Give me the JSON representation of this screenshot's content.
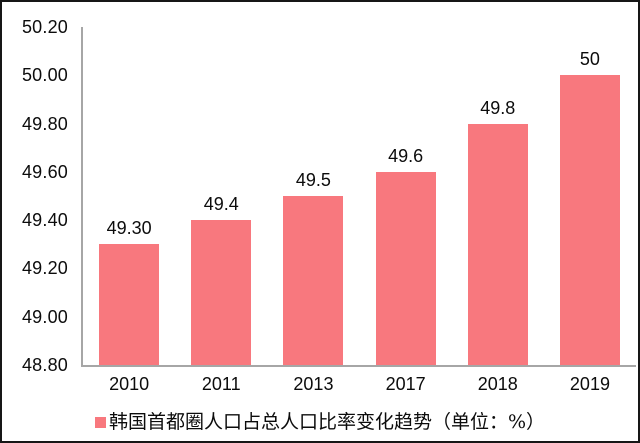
{
  "chart_data": {
    "type": "bar",
    "categories": [
      "2010",
      "2011",
      "2013",
      "2017",
      "2018",
      "2019"
    ],
    "values": [
      49.3,
      49.4,
      49.5,
      49.6,
      49.8,
      50.0
    ],
    "bar_labels": [
      "49.30",
      "49.4",
      "49.5",
      "49.6",
      "49.8",
      "50"
    ],
    "title": "",
    "xlabel": "",
    "ylabel": "",
    "ylim": [
      48.8,
      50.2
    ],
    "y_tick_step": 0.2,
    "y_tick_labels": [
      "50.20",
      "50.00",
      "49.80",
      "49.60",
      "49.40",
      "49.20",
      "49.00",
      "48.80"
    ],
    "grid": false,
    "legend": {
      "position": "bottom",
      "label": "韩国首都圈人口占总人口比率变化趋势（单位：%）"
    },
    "colors": {
      "bar": "#f8787e",
      "axis_line": "#a6a6a6",
      "text": "#0c0c0c",
      "background": "#ffffff",
      "frame_border": "#161616"
    }
  }
}
